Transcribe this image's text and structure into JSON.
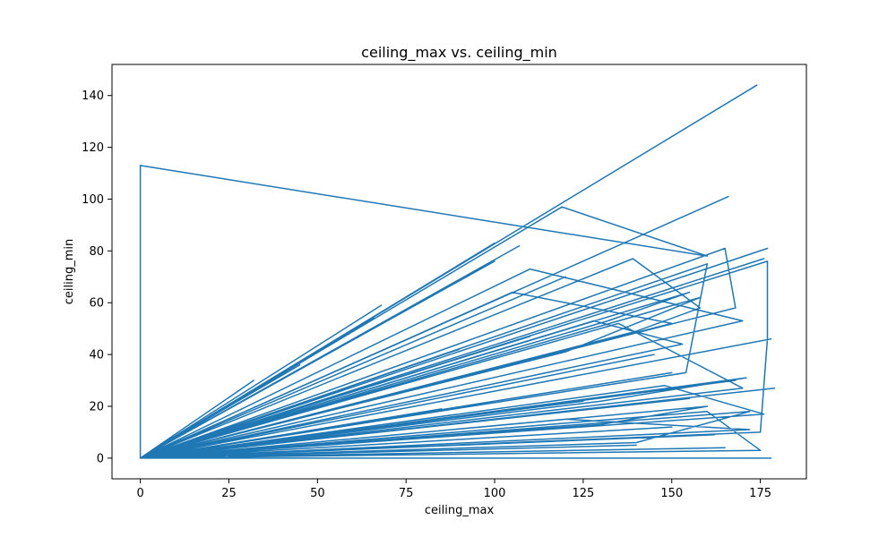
{
  "chart_data": {
    "type": "line",
    "title": "ceiling_max vs. ceiling_min",
    "xlabel": "ceiling_max",
    "ylabel": "ceiling_min",
    "xlim": [
      -8,
      188
    ],
    "ylim": [
      -8,
      152
    ],
    "x_ticks": [
      0,
      25,
      50,
      75,
      100,
      125,
      150,
      175
    ],
    "y_ticks": [
      0,
      20,
      40,
      60,
      80,
      100,
      120,
      140
    ],
    "grid": false,
    "legend": "none",
    "series": [
      {
        "color": "#1f77b4",
        "x": [
          0,
          174,
          0,
          119,
          160,
          0,
          0,
          166,
          0,
          100,
          0,
          107,
          0,
          165,
          168,
          0,
          68,
          0,
          100,
          0,
          120,
          0,
          150,
          105,
          0,
          160,
          154,
          0,
          177,
          0,
          176,
          0,
          139,
          158,
          140,
          0,
          155,
          132,
          0,
          128,
          153,
          0,
          110,
          170,
          0,
          158,
          120,
          0,
          168,
          0,
          171,
          130,
          0,
          176,
          148,
          0,
          175,
          160,
          0,
          179,
          0,
          135,
          170,
          0,
          178,
          0,
          177,
          177,
          175,
          0,
          172,
          140,
          0,
          165,
          0,
          130,
          160,
          0,
          150,
          0,
          145,
          0,
          178,
          0,
          162,
          0,
          120,
          172,
          0,
          155,
          0,
          32,
          0,
          90,
          0,
          66,
          0,
          45,
          0,
          110,
          0,
          150,
          0,
          140,
          0,
          125,
          0,
          85,
          0,
          177
        ],
        "y": [
          0,
          144,
          0,
          97,
          78,
          113,
          0,
          101,
          0,
          83,
          0,
          82,
          0,
          81,
          58,
          0,
          59,
          0,
          76,
          0,
          70,
          0,
          52,
          64,
          0,
          75,
          33,
          0,
          81,
          0,
          77,
          0,
          77,
          58,
          49,
          0,
          64,
          53,
          0,
          53,
          44,
          0,
          73,
          53,
          0,
          62,
          41,
          0,
          30,
          0,
          31,
          22,
          0,
          17,
          28,
          0,
          3,
          18,
          0,
          27,
          0,
          52,
          27,
          0,
          46,
          0,
          76,
          46,
          10,
          0,
          18,
          6,
          0,
          4,
          0,
          13,
          20,
          0,
          33,
          0,
          40,
          0,
          0,
          0,
          9,
          0,
          15,
          11,
          0,
          23,
          0,
          30,
          0,
          42,
          0,
          54,
          0,
          36,
          0,
          47,
          0,
          12,
          0,
          5,
          0,
          22,
          0,
          19,
          0,
          0
        ]
      }
    ]
  }
}
